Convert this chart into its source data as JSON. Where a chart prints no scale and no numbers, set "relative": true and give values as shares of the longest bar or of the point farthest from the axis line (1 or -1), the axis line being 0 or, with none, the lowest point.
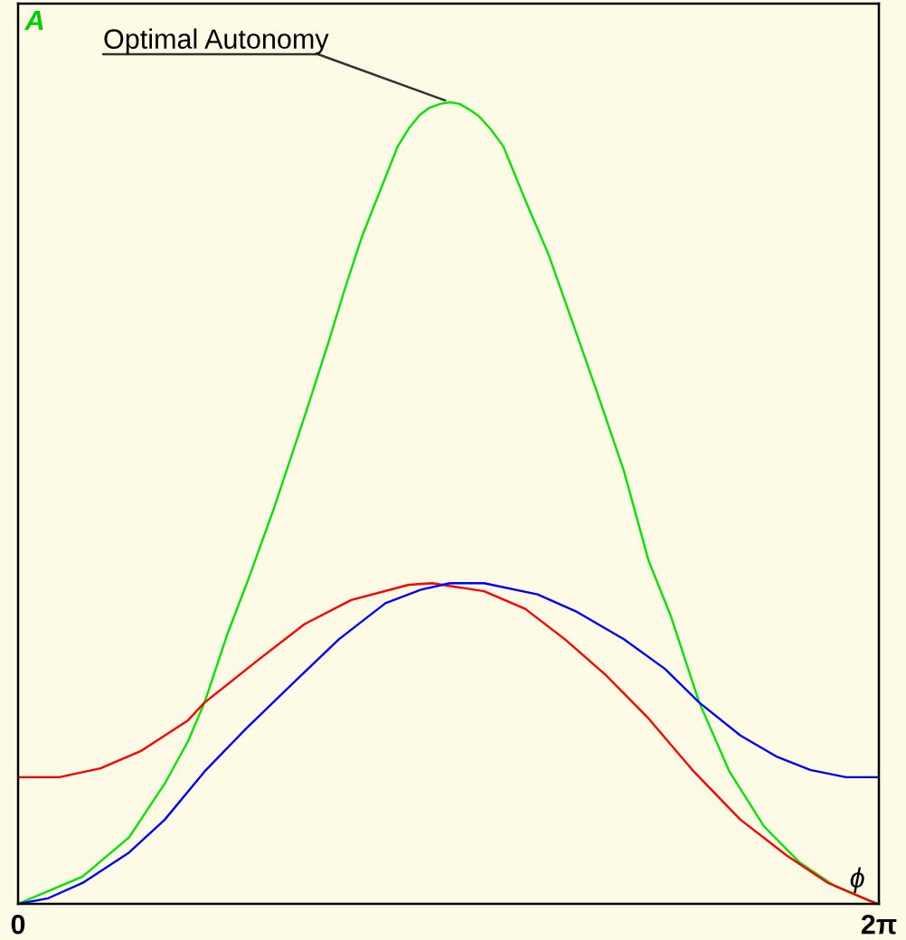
{
  "chart_data": {
    "type": "line",
    "xlabel": "ϕ",
    "ylabel": "A",
    "relative": true,
    "tick_labels": "x",
    "xlim": [
      0,
      6.28
    ],
    "xticks": [
      0,
      {
        "value": 6.28,
        "label": "2π"
      }
    ],
    "annotations": [
      {
        "text": "Optimal Autonomy",
        "x": 3.15,
        "y": 1.0
      }
    ],
    "series": [
      {
        "color": "#00e600",
        "x": [
          0,
          0.47,
          0.81,
          1.07,
          1.24,
          1.36,
          1.53,
          1.68,
          1.87,
          2.09,
          2.26,
          2.38,
          2.51,
          2.64,
          2.77,
          2.85,
          2.93,
          3.0,
          3.08,
          3.15,
          3.22,
          3.3,
          3.36,
          3.45,
          3.54,
          3.7,
          3.87,
          4.04,
          4.21,
          4.42,
          4.6,
          4.76,
          4.97,
          5.19,
          5.44,
          5.7,
          5.95,
          6.21,
          6.28
        ],
        "values": [
          0,
          0.034,
          0.083,
          0.15,
          0.203,
          0.251,
          0.338,
          0.405,
          0.495,
          0.608,
          0.698,
          0.765,
          0.833,
          0.889,
          0.945,
          0.967,
          0.984,
          0.993,
          0.998,
          1.0,
          0.998,
          0.99,
          0.983,
          0.966,
          0.945,
          0.878,
          0.81,
          0.728,
          0.645,
          0.54,
          0.428,
          0.36,
          0.251,
          0.165,
          0.097,
          0.052,
          0.023,
          0.004,
          0
        ]
      },
      {
        "color": "#ff0000",
        "x": [
          0,
          0.3,
          0.6,
          0.9,
          1.24,
          1.36,
          1.75,
          2.09,
          2.43,
          2.85,
          3.02,
          3.4,
          3.7,
          3.99,
          4.29,
          4.59,
          4.93,
          5.27,
          5.61,
          5.91,
          6.21,
          6.27
        ],
        "values": [
          0.158,
          0.158,
          0.169,
          0.191,
          0.229,
          0.251,
          0.304,
          0.349,
          0.379,
          0.398,
          0.4,
          0.39,
          0.368,
          0.33,
          0.285,
          0.233,
          0.165,
          0.105,
          0.06,
          0.026,
          0.004,
          0
        ]
      },
      {
        "color": "#0000ff",
        "x": [
          0,
          0.22,
          0.47,
          0.81,
          1.07,
          1.36,
          1.66,
          2.04,
          2.34,
          2.68,
          2.94,
          3.15,
          3.4,
          3.79,
          4.08,
          4.42,
          4.72,
          4.97,
          5.27,
          5.53,
          5.78,
          6.04,
          6.28
        ],
        "values": [
          0,
          0.007,
          0.026,
          0.064,
          0.105,
          0.165,
          0.218,
          0.281,
          0.33,
          0.375,
          0.392,
          0.4,
          0.4,
          0.386,
          0.364,
          0.33,
          0.293,
          0.251,
          0.21,
          0.184,
          0.167,
          0.158,
          0.158
        ]
      }
    ]
  }
}
